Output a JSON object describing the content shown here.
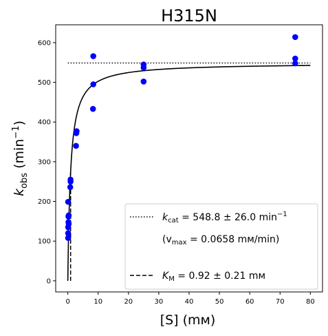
{
  "chart_data": {
    "type": "scatter",
    "title": "H315N",
    "xlabel": "[S] (mм)",
    "ylabel_main": "k",
    "ylabel_sub": "obs",
    "ylabel_unit_open": "(min",
    "ylabel_unit_sup": "−1",
    "ylabel_unit_close": ")",
    "xlim": [
      -4,
      84
    ],
    "ylim": [
      -28,
      645
    ],
    "xticks": [
      0,
      10,
      20,
      30,
      40,
      50,
      60,
      70,
      80
    ],
    "yticks": [
      0,
      100,
      200,
      300,
      400,
      500,
      600
    ],
    "colors": {
      "points": "#0000ff",
      "fit": "#000000"
    },
    "points": [
      {
        "x": 0.1,
        "y": 108
      },
      {
        "x": 0.1,
        "y": 120
      },
      {
        "x": 0.1,
        "y": 135
      },
      {
        "x": 0.1,
        "y": 199
      },
      {
        "x": 0.2,
        "y": 148
      },
      {
        "x": 0.2,
        "y": 162
      },
      {
        "x": 0.3,
        "y": 143
      },
      {
        "x": 0.3,
        "y": 165
      },
      {
        "x": 0.8,
        "y": 236
      },
      {
        "x": 0.9,
        "y": 250
      },
      {
        "x": 0.9,
        "y": 255
      },
      {
        "x": 2.7,
        "y": 340
      },
      {
        "x": 2.8,
        "y": 372
      },
      {
        "x": 2.9,
        "y": 377
      },
      {
        "x": 8.3,
        "y": 433
      },
      {
        "x": 8.4,
        "y": 495
      },
      {
        "x": 8.4,
        "y": 566
      },
      {
        "x": 25,
        "y": 502
      },
      {
        "x": 25,
        "y": 537
      },
      {
        "x": 25,
        "y": 545
      },
      {
        "x": 75,
        "y": 548
      },
      {
        "x": 75,
        "y": 560
      },
      {
        "x": 75,
        "y": 614
      }
    ],
    "kcat": 548.8,
    "km": 0.92,
    "fit_range": [
      0,
      80
    ],
    "kcat_line_range": [
      0,
      80
    ],
    "km_line_range": [
      0,
      274
    ],
    "legend": {
      "placement": "lower-right",
      "kcat_label_main": "k",
      "kcat_label_sub": "cat",
      "kcat_label_rest": " = 548.8 ± 26.0 min",
      "kcat_label_sup": "−1",
      "vmax_open": "(v",
      "vmax_sub": "max",
      "vmax_rest": " = 0.0658 mм/min)",
      "km_label_main": "K",
      "km_label_sub": "M",
      "km_label_rest": " = 0.92 ± 0.21 mм"
    }
  }
}
